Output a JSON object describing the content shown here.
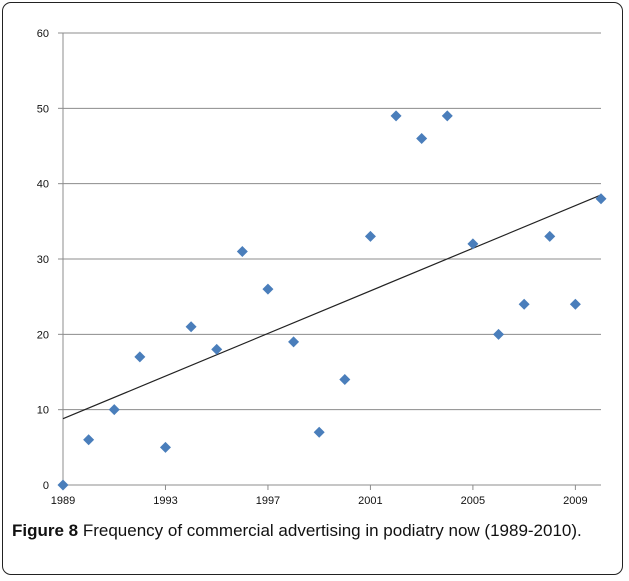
{
  "chart_data": {
    "type": "scatter",
    "title": "",
    "xlabel": "",
    "ylabel": "",
    "xlim": [
      1989,
      2010
    ],
    "ylim": [
      0,
      60
    ],
    "x_ticks": [
      "1989",
      "1993",
      "1997",
      "2001",
      "2005",
      "2009"
    ],
    "y_ticks": [
      "0",
      "10",
      "20",
      "30",
      "40",
      "50",
      "60"
    ],
    "grid": "horizontal",
    "marker": "diamond",
    "marker_color": "#4a7ebb",
    "trendline": {
      "type": "linear",
      "start": [
        1989,
        8.8
      ],
      "end": [
        2010,
        38.5
      ],
      "color": "#222222"
    },
    "x": [
      1989,
      1990,
      1991,
      1992,
      1993,
      1994,
      1995,
      1996,
      1997,
      1998,
      1999,
      2000,
      2001,
      2002,
      2003,
      2004,
      2005,
      2006,
      2007,
      2008,
      2009,
      2010
    ],
    "y": [
      0,
      6,
      10,
      17,
      5,
      21,
      18,
      31,
      26,
      19,
      7,
      14,
      33,
      49,
      46,
      49,
      32,
      20,
      24,
      33,
      24,
      38
    ]
  },
  "caption": {
    "label": "Figure 8",
    "text": " Frequency of commercial advertising in podiatry now (1989-2010)."
  }
}
